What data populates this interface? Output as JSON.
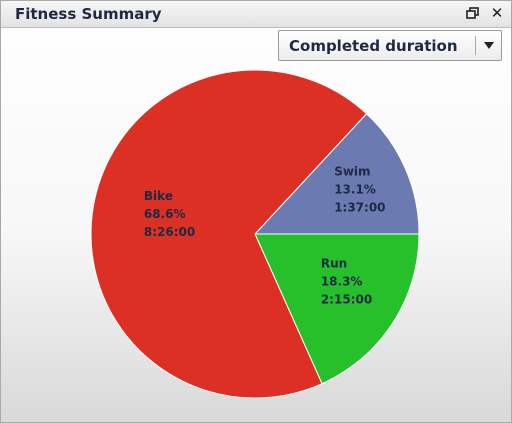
{
  "window": {
    "title": "Fitness Summary",
    "restore_icon": "restore-window-icon",
    "close_icon": "close-icon"
  },
  "metric_select": {
    "selected": "Completed duration",
    "arrow_icon": "chevron-down-icon"
  },
  "chart_data": {
    "type": "pie",
    "slices": [
      {
        "label": "Swim",
        "percent": "13.1%",
        "value": 13.1,
        "duration": "1:37:00",
        "color": "#6b7ab0"
      },
      {
        "label": "Run",
        "percent": "18.3%",
        "value": 18.3,
        "duration": "2:15:00",
        "color": "#26c02a"
      },
      {
        "label": "Bike",
        "percent": "68.6%",
        "value": 68.6,
        "duration": "8:26:00",
        "color": "#dd3024"
      }
    ]
  }
}
